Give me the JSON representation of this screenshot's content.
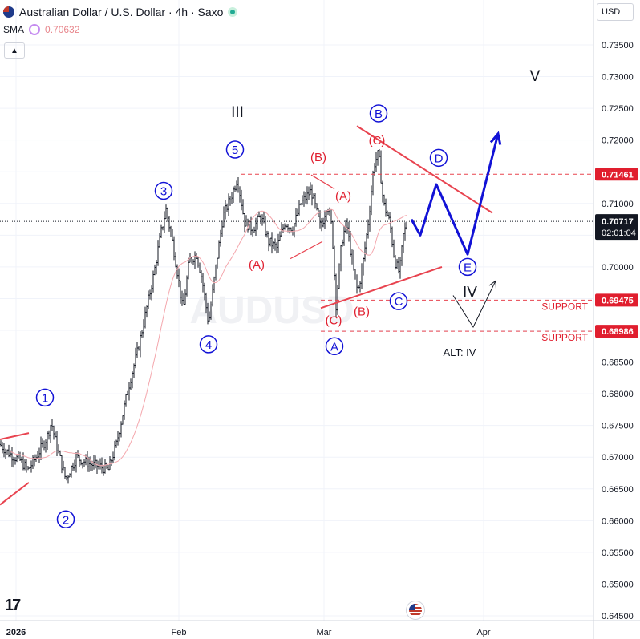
{
  "header": {
    "symbol_title": "Australian Dollar / U.S. Dollar · 4h · Saxo",
    "sma_label": "SMA",
    "sma_value": "0.70632",
    "currency_button": "USD"
  },
  "colors": {
    "up_down_bars": "#131722",
    "sma_line": "#f4a7ad",
    "wave_blue": "#1212d6",
    "wave_red": "#e01e2e",
    "trendline_red": "#e8434f",
    "support_dashed": "#e8434f",
    "grid": "#f0f3fa"
  },
  "watermark": "AUDUSD",
  "chart_data": {
    "type": "candlestick",
    "title": "Australian Dollar / U.S. Dollar · 4h · Saxo",
    "ylim": [
      0.6446,
      0.7375
    ],
    "y_ticks": [
      "0.73500",
      "0.73000",
      "0.72500",
      "0.72000",
      "0.71500",
      "0.71000",
      "0.70500",
      "0.70000",
      "0.69500",
      "0.69000",
      "0.68500",
      "0.68000",
      "0.67500",
      "0.67000",
      "0.66500",
      "0.66000",
      "0.65500",
      "0.65000",
      "0.64500"
    ],
    "x_ticks": [
      "2026",
      "Feb",
      "Mar",
      "Apr"
    ],
    "price_path": [
      [
        0,
        0.672
      ],
      [
        12,
        0.6705
      ],
      [
        25,
        0.6695
      ],
      [
        35,
        0.668
      ],
      [
        45,
        0.67
      ],
      [
        58,
        0.673
      ],
      [
        64,
        0.6755
      ],
      [
        70,
        0.672
      ],
      [
        82,
        0.6665
      ],
      [
        95,
        0.67
      ],
      [
        110,
        0.669
      ],
      [
        125,
        0.6685
      ],
      [
        135,
        0.668
      ],
      [
        145,
        0.672
      ],
      [
        160,
        0.681
      ],
      [
        172,
        0.687
      ],
      [
        182,
        0.693
      ],
      [
        192,
        0.699
      ],
      [
        200,
        0.705
      ],
      [
        207,
        0.709
      ],
      [
        215,
        0.704
      ],
      [
        222,
        0.6985
      ],
      [
        228,
        0.693
      ],
      [
        236,
        0.701
      ],
      [
        245,
        0.702
      ],
      [
        252,
        0.698
      ],
      [
        260,
        0.691
      ],
      [
        268,
        0.699
      ],
      [
        278,
        0.708
      ],
      [
        288,
        0.711
      ],
      [
        296,
        0.714
      ],
      [
        305,
        0.707
      ],
      [
        315,
        0.706
      ],
      [
        325,
        0.708
      ],
      [
        335,
        0.704
      ],
      [
        345,
        0.703
      ],
      [
        355,
        0.707
      ],
      [
        365,
        0.706
      ],
      [
        375,
        0.71
      ],
      [
        388,
        0.712
      ],
      [
        400,
        0.706
      ],
      [
        408,
        0.71
      ],
      [
        414,
        0.706
      ],
      [
        419,
        0.694
      ],
      [
        426,
        0.704
      ],
      [
        432,
        0.707
      ],
      [
        440,
        0.7
      ],
      [
        446,
        0.696
      ],
      [
        452,
        0.7
      ],
      [
        460,
        0.708
      ],
      [
        466,
        0.716
      ],
      [
        472,
        0.718
      ],
      [
        478,
        0.71
      ],
      [
        486,
        0.707
      ],
      [
        492,
        0.701
      ],
      [
        498,
        0.699
      ],
      [
        503,
        0.705
      ],
      [
        508,
        0.7072
      ]
    ],
    "sma": {
      "name": "SMA",
      "value": 0.70632
    },
    "current_price": {
      "value": "0.70717",
      "countdown": "02:01:04"
    },
    "levels": [
      {
        "label": "0.71461",
        "value": 0.71461,
        "text": ""
      },
      {
        "label": "0.69475",
        "value": 0.69475,
        "text": "SUPPORT"
      },
      {
        "label": "0.68986",
        "value": 0.68986,
        "text": "SUPPORT"
      }
    ],
    "wave_labels": [
      {
        "text": "1",
        "style": "circle-blue",
        "t": 56,
        "v": 0.6794
      },
      {
        "text": "2",
        "style": "circle-blue",
        "t": 82,
        "v": 0.6602
      },
      {
        "text": "3",
        "style": "circle-blue",
        "t": 204,
        "v": 0.712
      },
      {
        "text": "4",
        "style": "circle-blue",
        "t": 260,
        "v": 0.6878
      },
      {
        "text": "5",
        "style": "circle-blue",
        "t": 293,
        "v": 0.7185
      },
      {
        "text": "III",
        "style": "roman",
        "t": 296,
        "v": 0.7245
      },
      {
        "text": "B",
        "style": "circle-blue",
        "t": 472,
        "v": 0.7242
      },
      {
        "text": "(C)",
        "style": "red",
        "t": 470,
        "v": 0.7201
      },
      {
        "text": "(B)",
        "style": "red",
        "t": 397,
        "v": 0.7174
      },
      {
        "text": "(A)",
        "style": "red",
        "t": 428,
        "v": 0.7113
      },
      {
        "text": "(A)",
        "style": "red",
        "t": 320,
        "v": 0.7005
      },
      {
        "text": "(C)",
        "style": "red",
        "t": 416,
        "v": 0.6917
      },
      {
        "text": "(B)",
        "style": "red",
        "t": 451,
        "v": 0.6931
      },
      {
        "text": "C",
        "style": "circle-blue",
        "t": 497,
        "v": 0.6946
      },
      {
        "text": "A",
        "style": "circle-blue",
        "t": 417,
        "v": 0.6875
      },
      {
        "text": "D",
        "style": "circle-blue",
        "t": 547,
        "v": 0.7172
      },
      {
        "text": "E",
        "style": "circle-blue",
        "t": 583,
        "v": 0.7
      },
      {
        "text": "IV",
        "style": "roman",
        "t": 586,
        "v": 0.6961
      },
      {
        "text": "V",
        "style": "roman",
        "t": 667,
        "v": 0.7302
      },
      {
        "text": "ALT: IV",
        "style": "small",
        "t": 573,
        "v": 0.6866
      }
    ],
    "projection_blue": [
      [
        513,
        0.7075
      ],
      [
        524,
        0.705
      ],
      [
        544,
        0.713
      ],
      [
        583,
        0.702
      ],
      [
        621,
        0.721
      ]
    ],
    "projection_black": [
      [
        565,
        0.6955
      ],
      [
        590,
        0.6905
      ],
      [
        618,
        0.6978
      ]
    ],
    "trendlines_red": [
      [
        [
          445,
          0.7222
        ],
        [
          614,
          0.7085
        ]
      ],
      [
        [
          400,
          0.6935
        ],
        [
          551,
          0.7
        ]
      ],
      [
        [
          362,
          0.7013
        ],
        [
          402,
          0.704
        ]
      ],
      [
        [
          388,
          0.7145
        ],
        [
          417,
          0.7123
        ]
      ],
      [
        [
          0,
          0.6728
        ],
        [
          36,
          0.6738
        ]
      ],
      [
        [
          0,
          0.6625
        ],
        [
          36,
          0.666
        ]
      ]
    ]
  }
}
